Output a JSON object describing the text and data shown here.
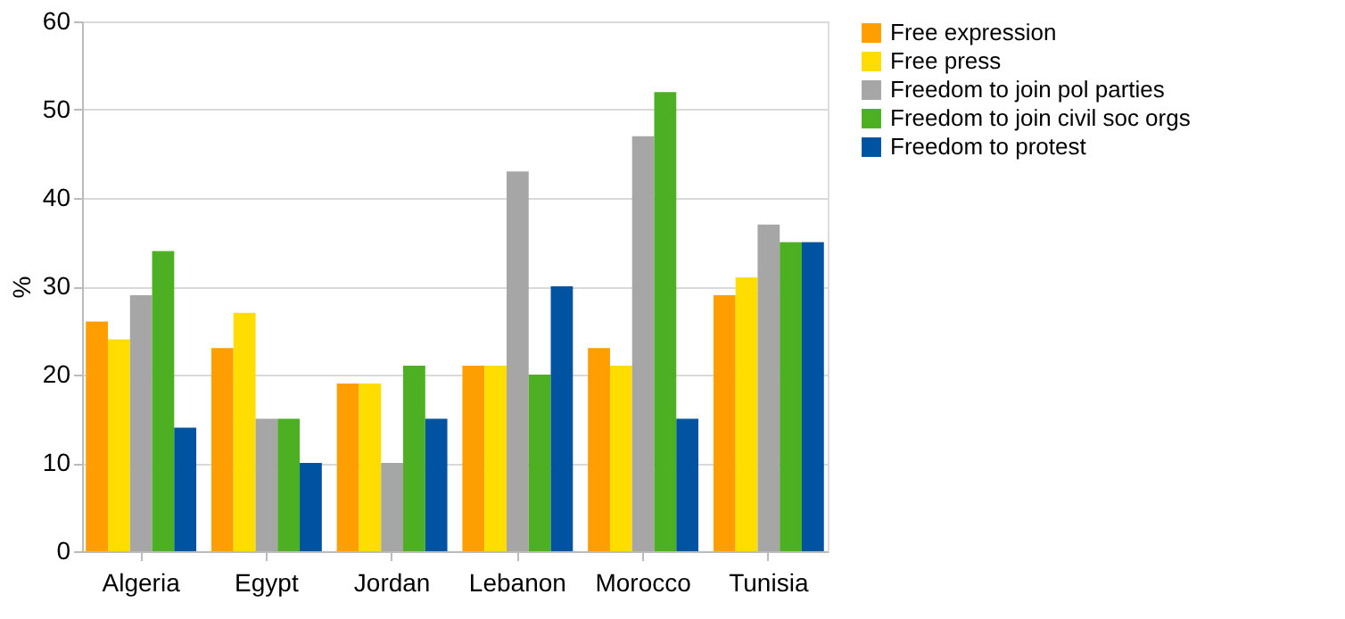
{
  "chart_data": {
    "type": "bar",
    "ylabel": "%",
    "categories": [
      "Algeria",
      "Egypt",
      "Jordan",
      "Lebanon",
      "Morocco",
      "Tunisia"
    ],
    "series": [
      {
        "name": "Free expression",
        "color": "#ff9e00",
        "values": [
          26,
          23,
          19,
          21,
          23,
          29
        ]
      },
      {
        "name": "Free press",
        "color": "#ffdd00",
        "values": [
          24,
          27,
          19,
          21,
          21,
          31
        ]
      },
      {
        "name": "Freedom to join pol parties",
        "color": "#a6a6a6",
        "values": [
          29,
          15,
          10,
          43,
          47,
          37
        ]
      },
      {
        "name": "Freedom to join civil soc orgs",
        "color": "#4cb022",
        "values": [
          34,
          15,
          21,
          20,
          52,
          35
        ]
      },
      {
        "name": "Freedom to protest",
        "color": "#0053a0",
        "values": [
          14,
          10,
          15,
          30,
          15,
          35
        ]
      }
    ],
    "ylim": [
      0,
      60
    ],
    "yticks": [
      0,
      10,
      20,
      30,
      40,
      50,
      60
    ],
    "grid": "y",
    "legend": "right"
  }
}
